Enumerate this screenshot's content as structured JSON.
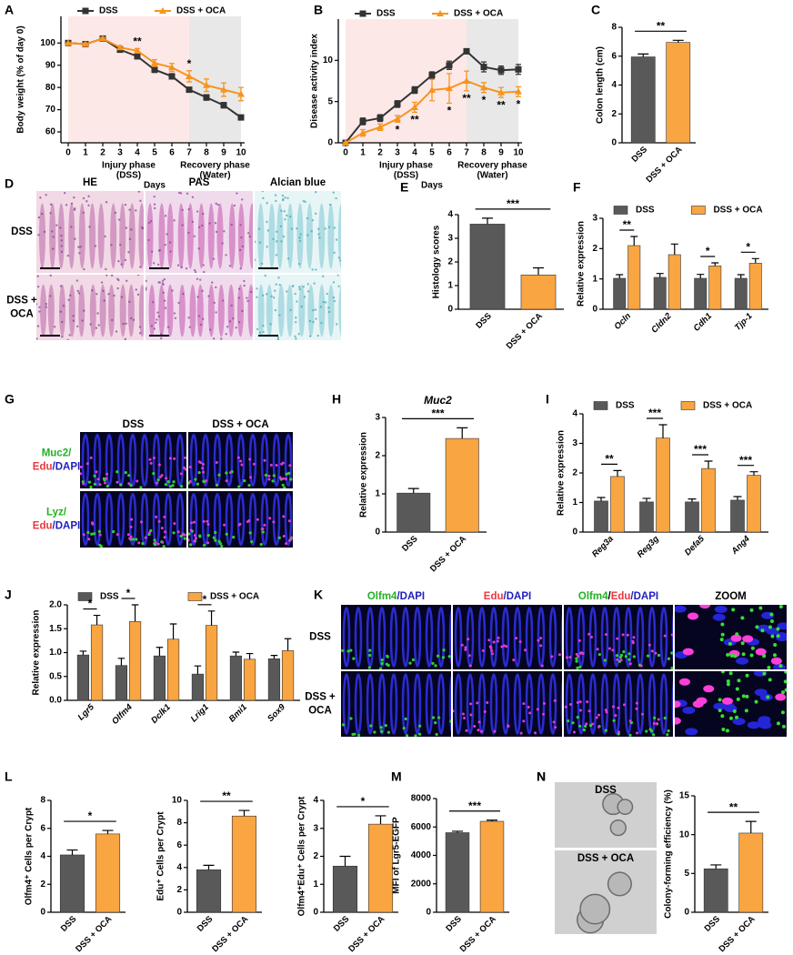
{
  "chart_data": [
    {
      "panel": "A",
      "type": "line",
      "ylabel": "Body weight (% of day 0)",
      "xlabel": "Days",
      "x": [
        0,
        1,
        2,
        3,
        4,
        5,
        6,
        7,
        8,
        9,
        10
      ],
      "xlim": [
        0,
        10
      ],
      "xticks": [
        0,
        1,
        2,
        3,
        4,
        5,
        6,
        7,
        8,
        9,
        10
      ],
      "ylim": [
        60,
        112
      ],
      "yticks": [
        60,
        70,
        80,
        90,
        100
      ],
      "spans": [
        {
          "from": 0,
          "to": 7,
          "color": "#fde8e8",
          "label": [
            "Injury phase",
            "(DSS)"
          ]
        },
        {
          "from": 7,
          "to": 10,
          "color": "#e8e8e8",
          "label": [
            "Recovery phase",
            "(Water)"
          ]
        }
      ],
      "series": [
        {
          "name": "DSS",
          "color": "#333333",
          "marker": "square",
          "values": [
            100,
            99.5,
            102,
            97,
            94,
            88,
            85,
            79,
            75.5,
            72,
            66.5
          ],
          "errors": [
            0,
            0.5,
            0.5,
            0.8,
            1,
            1.2,
            1.2,
            1,
            1.2,
            1.2,
            1
          ]
        },
        {
          "name": "DSS + OCA",
          "color": "#f7941d",
          "marker": "triangle",
          "values": [
            100,
            99.5,
            102,
            98,
            96.5,
            91,
            89,
            85,
            81,
            79,
            77
          ],
          "errors": [
            0,
            0.5,
            0.5,
            0.8,
            1,
            1.5,
            1.8,
            2.5,
            2.8,
            3,
            3
          ]
        }
      ],
      "annotations": [
        {
          "x": 4,
          "text": "**"
        },
        {
          "x": 7,
          "text": "*"
        }
      ],
      "annotation_side": "above"
    },
    {
      "panel": "B",
      "type": "line",
      "ylabel": "Disease activity index",
      "xlabel": "Days",
      "x": [
        0,
        1,
        2,
        3,
        4,
        5,
        6,
        7,
        8,
        9,
        10
      ],
      "xlim": [
        0,
        10
      ],
      "xticks": [
        0,
        1,
        2,
        3,
        4,
        5,
        6,
        7,
        8,
        9,
        10
      ],
      "ylim": [
        0,
        15
      ],
      "yticks": [
        0,
        5,
        10
      ],
      "spans": [
        {
          "from": 0,
          "to": 7,
          "color": "#fde8e8",
          "label": [
            "Injury phase",
            "(DSS)"
          ]
        },
        {
          "from": 7,
          "to": 10,
          "color": "#e8e8e8",
          "label": [
            "Recovery phase",
            "(Water)"
          ]
        }
      ],
      "series": [
        {
          "name": "DSS",
          "color": "#333333",
          "marker": "square",
          "values": [
            0,
            2.6,
            3,
            4.7,
            6.4,
            8.2,
            9.4,
            11.1,
            9.2,
            8.8,
            8.9
          ],
          "errors": [
            0,
            0.4,
            0.4,
            0.4,
            0.4,
            0.4,
            0.5,
            0.3,
            0.6,
            0.5,
            0.6
          ]
        },
        {
          "name": "DSS + OCA",
          "color": "#f7941d",
          "marker": "triangle",
          "values": [
            0,
            1.2,
            1.9,
            2.9,
            4.3,
            6.4,
            6.6,
            7.5,
            6.7,
            6.1,
            6.2
          ],
          "errors": [
            0,
            0.4,
            0.4,
            0.4,
            0.6,
            1.3,
            1.8,
            1.2,
            0.6,
            0.6,
            0.6
          ]
        }
      ],
      "annotations": [
        {
          "x": 3,
          "text": "*"
        },
        {
          "x": 4,
          "text": "**"
        },
        {
          "x": 6,
          "text": "*"
        },
        {
          "x": 7,
          "text": "**"
        },
        {
          "x": 8,
          "text": "*"
        },
        {
          "x": 9,
          "text": "**"
        },
        {
          "x": 10,
          "text": "*"
        }
      ],
      "annotation_side": "below"
    },
    {
      "panel": "C",
      "type": "bar",
      "ylabel": "Colon length (cm)",
      "categories": [
        "DSS",
        "DSS + OCA"
      ],
      "values": [
        5.95,
        6.95
      ],
      "errors": [
        0.2,
        0.15
      ],
      "colors": [
        "#595959",
        "#f9a541"
      ],
      "ylim": [
        0,
        8
      ],
      "yticks": [
        0,
        2,
        4,
        6,
        8
      ],
      "significance": {
        "from": 0,
        "to": 1,
        "text": "**"
      }
    },
    {
      "panel": "E",
      "type": "bar",
      "ylabel": "Histology scores",
      "categories": [
        "DSS",
        "DSS + OCA"
      ],
      "values": [
        3.6,
        1.45
      ],
      "errors": [
        0.25,
        0.3
      ],
      "colors": [
        "#595959",
        "#f9a541"
      ],
      "ylim": [
        0,
        4
      ],
      "yticks": [
        0,
        1,
        2,
        3,
        4
      ],
      "significance": {
        "from": 0,
        "to": 1,
        "text": "***"
      }
    },
    {
      "panel": "F",
      "type": "bar",
      "ylabel": "Relative expression",
      "categories": [
        "Ocln",
        "Cldn2",
        "Cdh1",
        "Tjp-1"
      ],
      "xtick_italic": true,
      "series": [
        {
          "name": "DSS",
          "color": "#595959",
          "values": [
            1.02,
            1.05,
            1.02,
            1.02
          ],
          "errors": [
            0.12,
            0.13,
            0.13,
            0.12
          ]
        },
        {
          "name": "DSS + OCA",
          "color": "#f9a541",
          "values": [
            2.1,
            1.8,
            1.43,
            1.52
          ],
          "errors": [
            0.3,
            0.35,
            0.1,
            0.15
          ]
        }
      ],
      "ylim": [
        0,
        3
      ],
      "yticks": [
        0,
        1,
        2,
        3
      ],
      "significance": [
        "**",
        null,
        "*",
        "*"
      ]
    },
    {
      "panel": "H",
      "type": "bar",
      "title": "Muc2",
      "title_italic": true,
      "ylabel": "Relative expression",
      "categories": [
        "DSS",
        "DSS + OCA"
      ],
      "values": [
        1.02,
        2.45
      ],
      "errors": [
        0.12,
        0.28
      ],
      "colors": [
        "#595959",
        "#f9a541"
      ],
      "ylim": [
        0,
        3
      ],
      "yticks": [
        0,
        1,
        2,
        3
      ],
      "significance": {
        "from": 0,
        "to": 1,
        "text": "***"
      }
    },
    {
      "panel": "I",
      "type": "bar",
      "ylabel": "Relative expression",
      "categories": [
        "Reg3a",
        "Reg3g",
        "Defa5",
        "Ang4"
      ],
      "xtick_italic": true,
      "series": [
        {
          "name": "DSS",
          "color": "#595959",
          "values": [
            1.05,
            1.02,
            1.02,
            1.08
          ],
          "errors": [
            0.12,
            0.12,
            0.1,
            0.12
          ]
        },
        {
          "name": "DSS + OCA",
          "color": "#f9a541",
          "values": [
            1.88,
            3.18,
            2.15,
            1.92
          ],
          "errors": [
            0.2,
            0.45,
            0.25,
            0.12
          ]
        }
      ],
      "ylim": [
        0,
        4
      ],
      "yticks": [
        0,
        1,
        2,
        3,
        4
      ],
      "significance": [
        "**",
        "***",
        "***",
        "***"
      ]
    },
    {
      "panel": "J",
      "type": "bar",
      "ylabel": "Relative expression",
      "categories": [
        "Lgr5",
        "Olfm4",
        "Dclk1",
        "Lrig1",
        "Bmi1",
        "Sox9"
      ],
      "xtick_italic": true,
      "series": [
        {
          "name": "DSS",
          "color": "#595959",
          "values": [
            0.95,
            0.73,
            0.93,
            0.55,
            0.93,
            0.87
          ],
          "errors": [
            0.08,
            0.15,
            0.18,
            0.17,
            0.08,
            0.07
          ]
        },
        {
          "name": "DSS + OCA",
          "color": "#f9a541",
          "values": [
            1.58,
            1.65,
            1.28,
            1.57,
            0.86,
            1.04
          ],
          "errors": [
            0.2,
            0.35,
            0.32,
            0.3,
            0.12,
            0.25
          ]
        }
      ],
      "ylim": [
        0,
        2
      ],
      "yticks": [
        {
          "value": 0,
          "label": "0.0"
        },
        0.5,
        {
          "value": 1,
          "label": "1.0"
        },
        1.5,
        {
          "value": 2,
          "label": "2.0"
        }
      ],
      "significance": [
        "*",
        "*",
        null,
        "*",
        null,
        null
      ]
    },
    {
      "panel": "L",
      "type": "bar",
      "ylabel": "Olfm4⁺ Cells per Crypt",
      "categories": [
        "DSS",
        "DSS + OCA"
      ],
      "values": [
        4.1,
        5.6
      ],
      "errors": [
        0.35,
        0.25
      ],
      "colors": [
        "#595959",
        "#f9a541"
      ],
      "ylim": [
        0,
        8
      ],
      "yticks": [
        0,
        2,
        4,
        6,
        8
      ],
      "significance": {
        "from": 0,
        "to": 1,
        "text": "*"
      }
    },
    {
      "type": "bar",
      "ylabel": "Edu⁺ Cells per Crypt",
      "categories": [
        "DSS",
        "DSS + OCA"
      ],
      "values": [
        3.8,
        8.6
      ],
      "errors": [
        0.4,
        0.5
      ],
      "colors": [
        "#595959",
        "#f9a541"
      ],
      "ylim": [
        0,
        10
      ],
      "yticks": [
        0,
        2,
        4,
        6,
        8,
        10
      ],
      "significance": {
        "from": 0,
        "to": 1,
        "text": "**"
      }
    },
    {
      "type": "bar",
      "ylabel": "Olfm4⁺Edu⁺ Cells per Crypt",
      "categories": [
        "DSS",
        "DSS + OCA"
      ],
      "values": [
        1.65,
        3.15
      ],
      "errors": [
        0.35,
        0.3
      ],
      "colors": [
        "#595959",
        "#f9a541"
      ],
      "ylim": [
        0,
        4
      ],
      "yticks": [
        0,
        1,
        2,
        3,
        4
      ],
      "significance": {
        "from": 0,
        "to": 1,
        "text": "*"
      }
    },
    {
      "panel": "M",
      "type": "bar",
      "ylabel": "MFI of Lgr5-EGFP",
      "categories": [
        "DSS",
        "DSS + OCA"
      ],
      "values": [
        5600,
        6400
      ],
      "errors": [
        100,
        80
      ],
      "colors": [
        "#595959",
        "#f9a541"
      ],
      "ylim": [
        0,
        8000
      ],
      "yticks": [
        0,
        2000,
        4000,
        6000,
        8000
      ],
      "significance": {
        "from": 0,
        "to": 1,
        "text": "***"
      }
    },
    {
      "panel": "N",
      "type": "bar",
      "ylabel": "Colony-forming efficiency (%)",
      "categories": [
        "DSS",
        "DSS + OCA"
      ],
      "values": [
        5.6,
        10.2
      ],
      "errors": [
        0.5,
        1.5
      ],
      "colors": [
        "#595959",
        "#f9a541"
      ],
      "ylim": [
        0,
        15
      ],
      "yticks": [
        0,
        5,
        10,
        15
      ],
      "significance": {
        "from": 0,
        "to": 1,
        "text": "**"
      }
    }
  ],
  "image_panels": [
    {
      "panel": "D",
      "columns": [
        "HE",
        "PAS",
        "Alcian blue"
      ],
      "rows": [
        [
          "DSS"
        ],
        [
          "DSS +",
          "OCA"
        ]
      ]
    },
    {
      "panel": "G",
      "columns": [
        "DSS",
        "DSS + OCA"
      ],
      "rows": [
        [
          [
            {
              "text": "Muc2/",
              "color": "#22b022"
            }
          ],
          [
            {
              "text": "Edu",
              "color": "#e8383d"
            },
            {
              "text": "/DAPI",
              "color": "#1f1fbf"
            }
          ]
        ],
        [
          [
            {
              "text": "Lyz/",
              "color": "#22b022"
            }
          ],
          [
            {
              "text": "Edu",
              "color": "#e8383d"
            },
            {
              "text": "/DAPI",
              "color": "#1f1fbf"
            }
          ]
        ]
      ]
    },
    {
      "panel": "K",
      "columns": [
        [
          {
            "text": "Olfm4",
            "color": "#22b022"
          },
          {
            "text": "/DAPI",
            "color": "#1f1fbf"
          }
        ],
        [
          {
            "text": "Edu",
            "color": "#e8383d"
          },
          {
            "text": "/DAPI",
            "color": "#1f1fbf"
          }
        ],
        [
          {
            "text": "Olfm4",
            "color": "#22b022"
          },
          {
            "text": "/",
            "color": "#000000"
          },
          {
            "text": "Edu",
            "color": "#e8383d"
          },
          {
            "text": "/DAPI",
            "color": "#1f1fbf"
          }
        ],
        "ZOOM"
      ],
      "rows": [
        [
          "DSS"
        ],
        [
          "DSS +",
          "OCA"
        ]
      ]
    },
    {
      "panel": "N",
      "rows": [
        [
          "DSS"
        ],
        [
          "DSS + OCA"
        ]
      ]
    }
  ]
}
